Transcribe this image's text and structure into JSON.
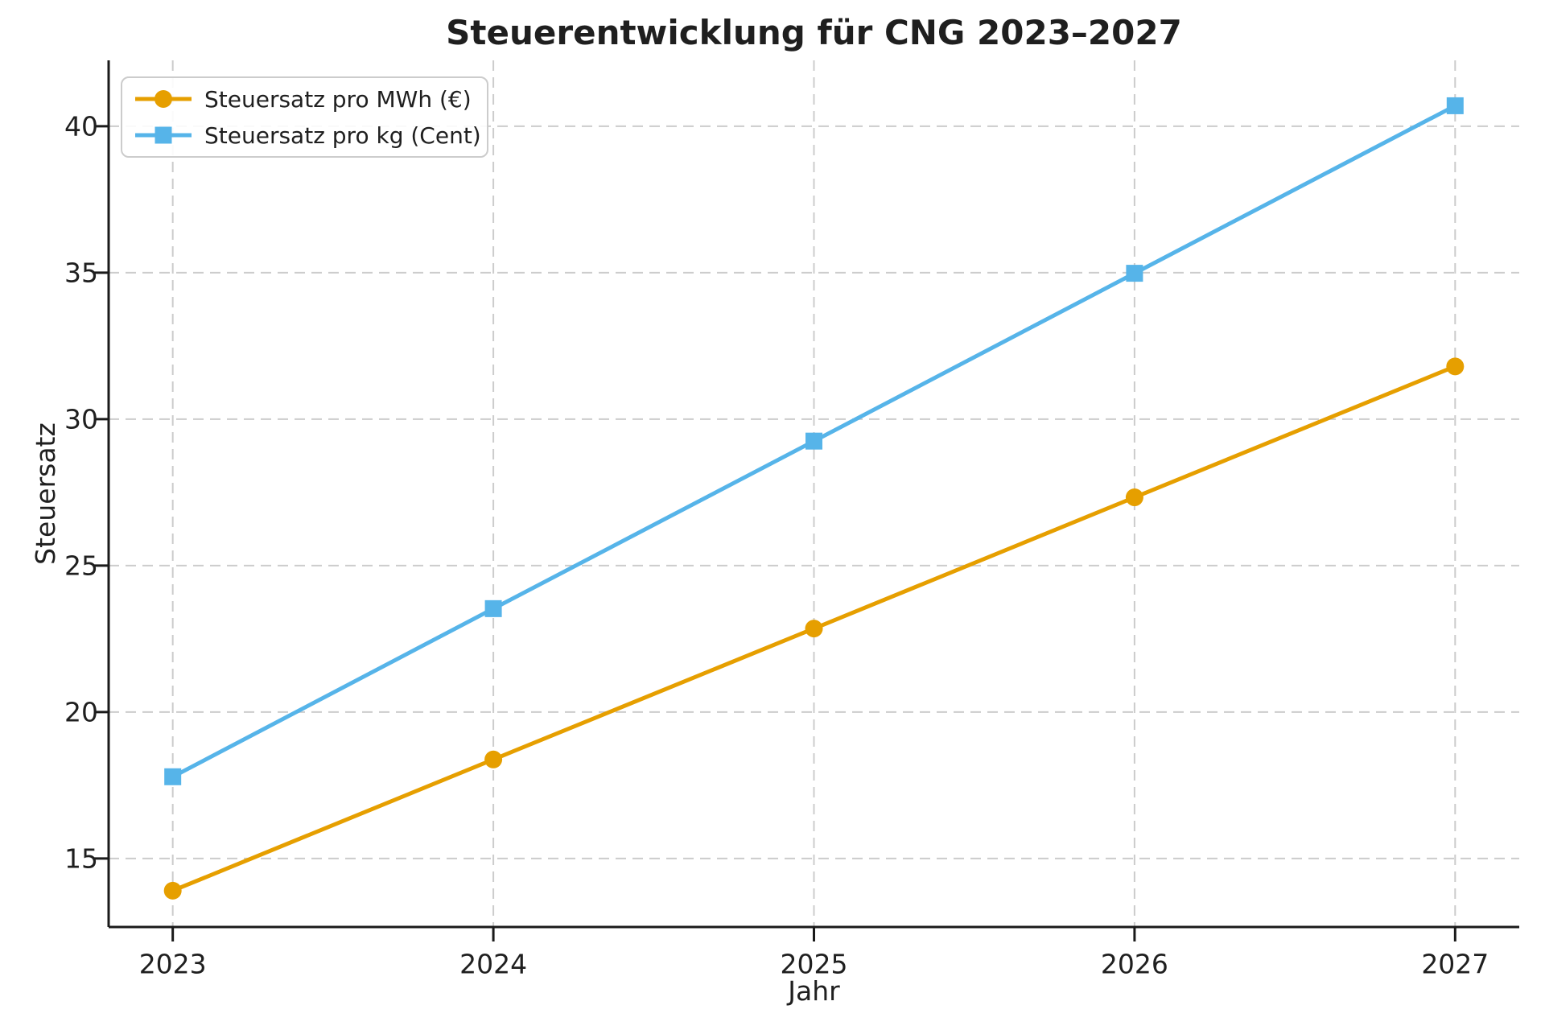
{
  "chart_data": {
    "type": "line",
    "title": "Steuerentwicklung für CNG 2023–2027",
    "xlabel": "Jahr",
    "ylabel": "Steuersatz",
    "x": [
      2023,
      2024,
      2025,
      2026,
      2027
    ],
    "x_tick_labels": [
      "2023",
      "2024",
      "2025",
      "2026",
      "2027"
    ],
    "y_ticks": [
      15,
      20,
      25,
      30,
      35,
      40
    ],
    "y_tick_labels": [
      "15",
      "20",
      "25",
      "30",
      "35",
      "40"
    ],
    "xlim": [
      2022.8,
      2027.2
    ],
    "ylim": [
      12.66,
      42.25
    ],
    "grid": {
      "visible": true,
      "line_style": "dashed",
      "color": "#cccccc"
    },
    "legend": {
      "position": "upper left",
      "border_color": "#cccccc",
      "background": "#ffffff"
    },
    "series": [
      {
        "name": "Steuersatz pro MWh (€)",
        "color": "#E69F00",
        "marker": "circle",
        "values": [
          13.9,
          18.38,
          22.85,
          27.33,
          31.8
        ]
      },
      {
        "name": "Steuersatz pro kg (Cent)",
        "color": "#56B4E9",
        "marker": "square",
        "values": [
          17.79,
          23.53,
          29.25,
          34.98,
          40.7
        ]
      }
    ],
    "style": {
      "text_color": "#1f1f1f",
      "spine_color": "#1a1a1a",
      "background": "#ffffff",
      "line_width": 5,
      "title_bold": true
    }
  }
}
